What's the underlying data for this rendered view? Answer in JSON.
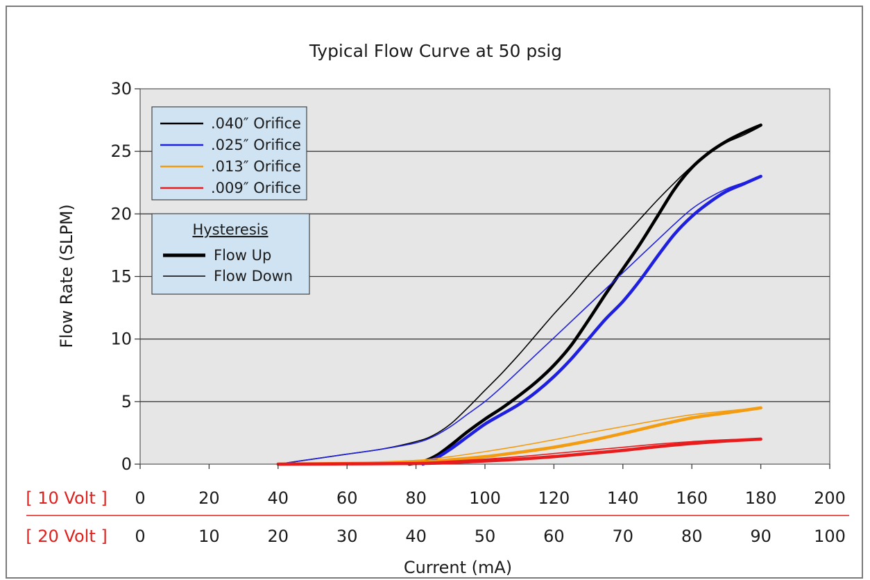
{
  "chart_data": {
    "type": "line",
    "title": "Typical Flow Curve at 50 psig",
    "ylabel": "Flow Rate (SLPM)",
    "xlabel": "Current (mA)",
    "xlim": [
      0,
      200
    ],
    "ylim": [
      0,
      30
    ],
    "grid": "horizontal",
    "y_ticks": [
      "0",
      "5",
      "10",
      "15",
      "20",
      "25",
      "30"
    ],
    "x_axis_rows": [
      {
        "label": "[ 10 Volt ]",
        "ticks": [
          "0",
          "20",
          "40",
          "60",
          "80",
          "100",
          "120",
          "140",
          "160",
          "180",
          "200"
        ]
      },
      {
        "label": "[ 20 Volt ]",
        "ticks": [
          "0",
          "10",
          "20",
          "30",
          "40",
          "50",
          "60",
          "70",
          "80",
          "90",
          "100"
        ]
      }
    ],
    "legend": {
      "placement": "top-left",
      "orifices": [
        {
          "name": ".040″ Orifice",
          "color": "#000000"
        },
        {
          "name": ".025″ Orifice",
          "color": "#1f1fe0"
        },
        {
          "name": ".013″ Orifice",
          "color": "#f39c12"
        },
        {
          "name": ".009″ Orifice",
          "color": "#e81c1c"
        }
      ],
      "hysteresis_title": "Hysteresis",
      "hysteresis": [
        {
          "name": "Flow Up",
          "style": "thick"
        },
        {
          "name": "Flow Down",
          "style": "thin"
        }
      ]
    },
    "series": [
      {
        "orifice": ".040″ Orifice",
        "direction": "Flow Up",
        "color": "#000000",
        "x": [
          78,
          82,
          86,
          90,
          95,
          100,
          105,
          110,
          115,
          120,
          125,
          130,
          135,
          140,
          145,
          150,
          155,
          160,
          165,
          170,
          175,
          180
        ],
        "y": [
          0,
          0.2,
          0.7,
          1.5,
          2.6,
          3.6,
          4.5,
          5.5,
          6.6,
          7.9,
          9.5,
          11.5,
          13.6,
          15.6,
          17.6,
          19.8,
          22,
          23.7,
          24.9,
          25.8,
          26.5,
          27.1
        ]
      },
      {
        "orifice": ".040″ Orifice",
        "direction": "Flow Down",
        "color": "#000000",
        "x": [
          40,
          50,
          60,
          70,
          80,
          85,
          90,
          95,
          100,
          105,
          110,
          115,
          120,
          125,
          130,
          135,
          140,
          145,
          150,
          155,
          160,
          165,
          170,
          175,
          180
        ],
        "y": [
          0,
          0.4,
          0.8,
          1.2,
          1.8,
          2.3,
          3.2,
          4.5,
          5.9,
          7.3,
          8.8,
          10.4,
          12,
          13.5,
          15.1,
          16.6,
          18.1,
          19.6,
          21.1,
          22.5,
          23.8,
          24.9,
          25.7,
          26.3,
          27
        ]
      },
      {
        "orifice": ".025″ Orifice",
        "direction": "Flow Up",
        "color": "#1f1fe0",
        "x": [
          82,
          86,
          90,
          95,
          100,
          105,
          110,
          115,
          120,
          125,
          130,
          135,
          140,
          145,
          150,
          155,
          160,
          165,
          170,
          175,
          180
        ],
        "y": [
          0,
          0.5,
          1.2,
          2.2,
          3.2,
          4,
          4.8,
          5.8,
          7,
          8.4,
          10,
          11.6,
          13,
          14.7,
          16.6,
          18.4,
          19.8,
          20.9,
          21.8,
          22.4,
          23
        ]
      },
      {
        "orifice": ".025″ Orifice",
        "direction": "Flow Down",
        "color": "#1f1fe0",
        "x": [
          40,
          50,
          60,
          70,
          80,
          85,
          90,
          95,
          100,
          105,
          110,
          115,
          120,
          125,
          130,
          135,
          140,
          145,
          150,
          155,
          160,
          165,
          170,
          175,
          180
        ],
        "y": [
          0,
          0.4,
          0.8,
          1.2,
          1.7,
          2.2,
          3,
          4,
          5,
          6.2,
          7.5,
          8.8,
          10.1,
          11.4,
          12.7,
          14,
          15.3,
          16.6,
          17.9,
          19.2,
          20.4,
          21.3,
          22,
          22.5,
          23
        ]
      },
      {
        "orifice": ".013″ Orifice",
        "direction": "Flow Up",
        "color": "#f39c12",
        "x": [
          40,
          60,
          80,
          90,
          100,
          110,
          120,
          130,
          140,
          150,
          160,
          170,
          180
        ],
        "y": [
          0,
          0.05,
          0.15,
          0.35,
          0.6,
          0.95,
          1.35,
          1.85,
          2.45,
          3.1,
          3.7,
          4.1,
          4.5
        ]
      },
      {
        "orifice": ".013″ Orifice",
        "direction": "Flow Down",
        "color": "#f39c12",
        "x": [
          40,
          60,
          80,
          90,
          100,
          110,
          120,
          130,
          140,
          150,
          160,
          170,
          180
        ],
        "y": [
          0,
          0.1,
          0.3,
          0.6,
          1,
          1.45,
          1.95,
          2.5,
          3,
          3.5,
          3.95,
          4.25,
          4.5
        ]
      },
      {
        "orifice": ".009″ Orifice",
        "direction": "Flow Up",
        "color": "#e81c1c",
        "x": [
          40,
          60,
          80,
          90,
          100,
          110,
          120,
          130,
          140,
          150,
          160,
          170,
          180
        ],
        "y": [
          0,
          0.02,
          0.05,
          0.12,
          0.25,
          0.4,
          0.6,
          0.85,
          1.1,
          1.4,
          1.65,
          1.85,
          2
        ]
      },
      {
        "orifice": ".009″ Orifice",
        "direction": "Flow Down",
        "color": "#e81c1c",
        "x": [
          40,
          60,
          80,
          90,
          100,
          110,
          120,
          130,
          140,
          150,
          160,
          170,
          180
        ],
        "y": [
          0,
          0.05,
          0.12,
          0.25,
          0.4,
          0.6,
          0.85,
          1.1,
          1.35,
          1.6,
          1.8,
          1.95,
          2
        ]
      }
    ]
  }
}
